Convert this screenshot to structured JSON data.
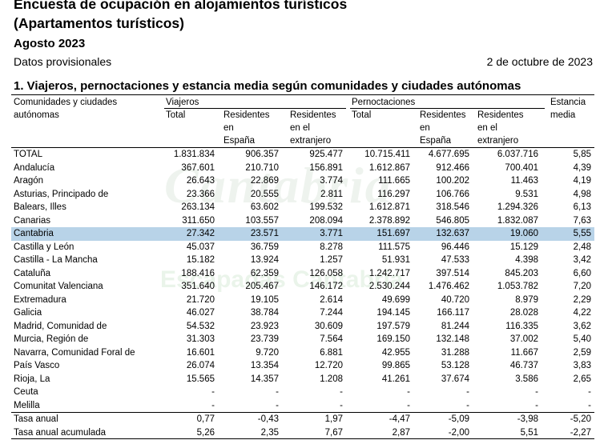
{
  "header": {
    "title_line1": "Encuesta de ocupación en alojamientos turísticos",
    "title_line2": "(Apartamentos turísticos)",
    "month": "Agosto 2023",
    "provisional": "Datos provisionales",
    "date": "2 de octubre de 2023"
  },
  "section_title": "1. Viajeros, pernoctaciones y estancia media según comunidades y ciudades autónomas",
  "watermark": {
    "text1": "Cantabria",
    "text2": "Escapadas Cantabria"
  },
  "table": {
    "col_region_l1": "Comunidades y ciudades",
    "col_region_l2": "autónomas",
    "group_viajeros": "Viajeros",
    "group_pernoctaciones": "Pernoctaciones",
    "col_estancia_l1": "Estancia",
    "col_estancia_l2": "media",
    "sub_total": "Total",
    "sub_res_esp_l1": "Residentes",
    "sub_res_esp_l2": "en",
    "sub_res_esp_l3": "España",
    "sub_res_ext_l1": "Residentes",
    "sub_res_ext_l2": "en el",
    "sub_res_ext_l3": "extranjero",
    "rows": [
      {
        "name": "TOTAL",
        "v": [
          "1.831.834",
          "906.357",
          "925.477",
          "10.715.411",
          "4.677.695",
          "6.037.716",
          "5,85"
        ]
      },
      {
        "name": "Andalucía",
        "v": [
          "367.601",
          "210.710",
          "156.891",
          "1.612.867",
          "912.466",
          "700.401",
          "4,39"
        ]
      },
      {
        "name": "Aragón",
        "v": [
          "26.643",
          "22.869",
          "3.774",
          "111.665",
          "100.202",
          "11.463",
          "4,19"
        ]
      },
      {
        "name": "Asturias, Principado de",
        "v": [
          "23.366",
          "20.555",
          "2.811",
          "116.297",
          "106.766",
          "9.531",
          "4,98"
        ]
      },
      {
        "name": "Balears, Illes",
        "v": [
          "263.134",
          "63.602",
          "199.532",
          "1.612.871",
          "318.546",
          "1.294.326",
          "6,13"
        ]
      },
      {
        "name": "Canarias",
        "v": [
          "311.650",
          "103.557",
          "208.094",
          "2.378.892",
          "546.805",
          "1.832.087",
          "7,63"
        ]
      },
      {
        "name": "Cantabria",
        "v": [
          "27.342",
          "23.571",
          "3.771",
          "151.697",
          "132.637",
          "19.060",
          "5,55"
        ]
      },
      {
        "name": "Castilla y León",
        "v": [
          "45.037",
          "36.759",
          "8.278",
          "111.575",
          "96.446",
          "15.129",
          "2,48"
        ]
      },
      {
        "name": "Castilla  - La Mancha",
        "v": [
          "15.182",
          "13.924",
          "1.257",
          "51.931",
          "47.533",
          "4.398",
          "3,42"
        ]
      },
      {
        "name": "Cataluña",
        "v": [
          "188.416",
          "62.359",
          "126.058",
          "1.242.717",
          "397.514",
          "845.203",
          "6,60"
        ]
      },
      {
        "name": "Comunitat Valenciana",
        "v": [
          "351.640",
          "205.467",
          "146.172",
          "2.530.244",
          "1.476.462",
          "1.053.782",
          "7,20"
        ]
      },
      {
        "name": "Extremadura",
        "v": [
          "21.720",
          "19.105",
          "2.614",
          "49.699",
          "40.720",
          "8.979",
          "2,29"
        ]
      },
      {
        "name": "Galicia",
        "v": [
          "46.027",
          "38.784",
          "7.244",
          "194.145",
          "166.117",
          "28.028",
          "4,22"
        ]
      },
      {
        "name": "Madrid, Comunidad de",
        "v": [
          "54.532",
          "23.923",
          "30.609",
          "197.579",
          "81.244",
          "116.335",
          "3,62"
        ]
      },
      {
        "name": "Murcia, Región de",
        "v": [
          "31.303",
          "23.739",
          "7.564",
          "169.150",
          "132.148",
          "37.002",
          "5,40"
        ]
      },
      {
        "name": "Navarra, Comunidad Foral de",
        "v": [
          "16.601",
          "9.720",
          "6.881",
          "42.955",
          "31.288",
          "11.667",
          "2,59"
        ]
      },
      {
        "name": "País Vasco",
        "v": [
          "26.074",
          "13.354",
          "12.720",
          "99.865",
          "53.128",
          "46.737",
          "3,83"
        ]
      },
      {
        "name": "Rioja, La",
        "v": [
          "15.565",
          "14.357",
          "1.208",
          "41.261",
          "37.674",
          "3.586",
          "2,65"
        ]
      },
      {
        "name": "Ceuta",
        "v": [
          "-",
          "-",
          "-",
          "-",
          "-",
          "-",
          "-"
        ]
      },
      {
        "name": "Melilla",
        "v": [
          "-",
          "-",
          "-",
          "-",
          "-",
          "-",
          "-"
        ]
      },
      {
        "name": "Tasa anual",
        "v": [
          "0,77",
          "-0,43",
          "1,97",
          "-4,47",
          "-5,09",
          "-3,98",
          "-5,20"
        ]
      },
      {
        "name": "Tasa anual acumulada",
        "v": [
          "5,26",
          "2,35",
          "7,67",
          "2,87",
          "-2,00",
          "5,51",
          "-2,27"
        ]
      }
    ],
    "highlight_row": "Cantabria",
    "highlight_color": "#b8d3e8"
  }
}
